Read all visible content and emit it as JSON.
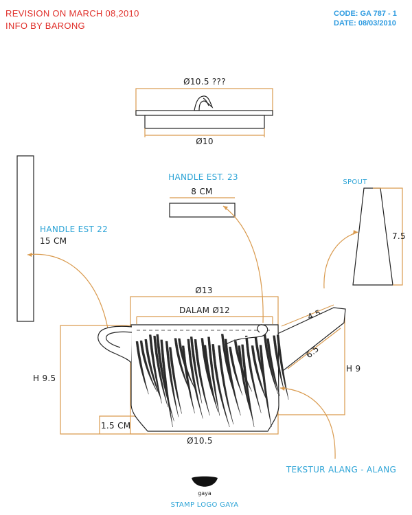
{
  "header": {
    "revision": "REVISION ON MARCH 08,2010",
    "info": "INFO BY BARONG",
    "code": "CODE: GA 787 - 1",
    "date": "DATE: 08/03/2010"
  },
  "lid": {
    "top_diameter": "Ø10.5 ???",
    "bottom_diameter": "Ø10"
  },
  "handle_small": {
    "title": "HANDLE EST. 23",
    "width": "8 CM"
  },
  "handle_large": {
    "title": "HANDLE EST 22",
    "length": "15 CM"
  },
  "spout": {
    "title": "SPOUT",
    "height": "7.5",
    "top_length": "4.5",
    "length": "6.5"
  },
  "body": {
    "outer_diameter": "Ø13",
    "inner_diameter": "DALAM Ø12",
    "height_total": "H 9.5",
    "height_spout": "H 9",
    "foot_height": "1.5 CM",
    "base_diameter": "Ø10.5",
    "texture": "TEKSTUR ALANG - ALANG"
  },
  "stamp": {
    "logo_text": "gaya",
    "label": "STAMP LOGO GAYA"
  },
  "colors": {
    "header_red": "#e0302b",
    "header_blue": "#2e9be0",
    "label_blue": "#2ba3d6",
    "dimension_line": "#d99a4e"
  }
}
